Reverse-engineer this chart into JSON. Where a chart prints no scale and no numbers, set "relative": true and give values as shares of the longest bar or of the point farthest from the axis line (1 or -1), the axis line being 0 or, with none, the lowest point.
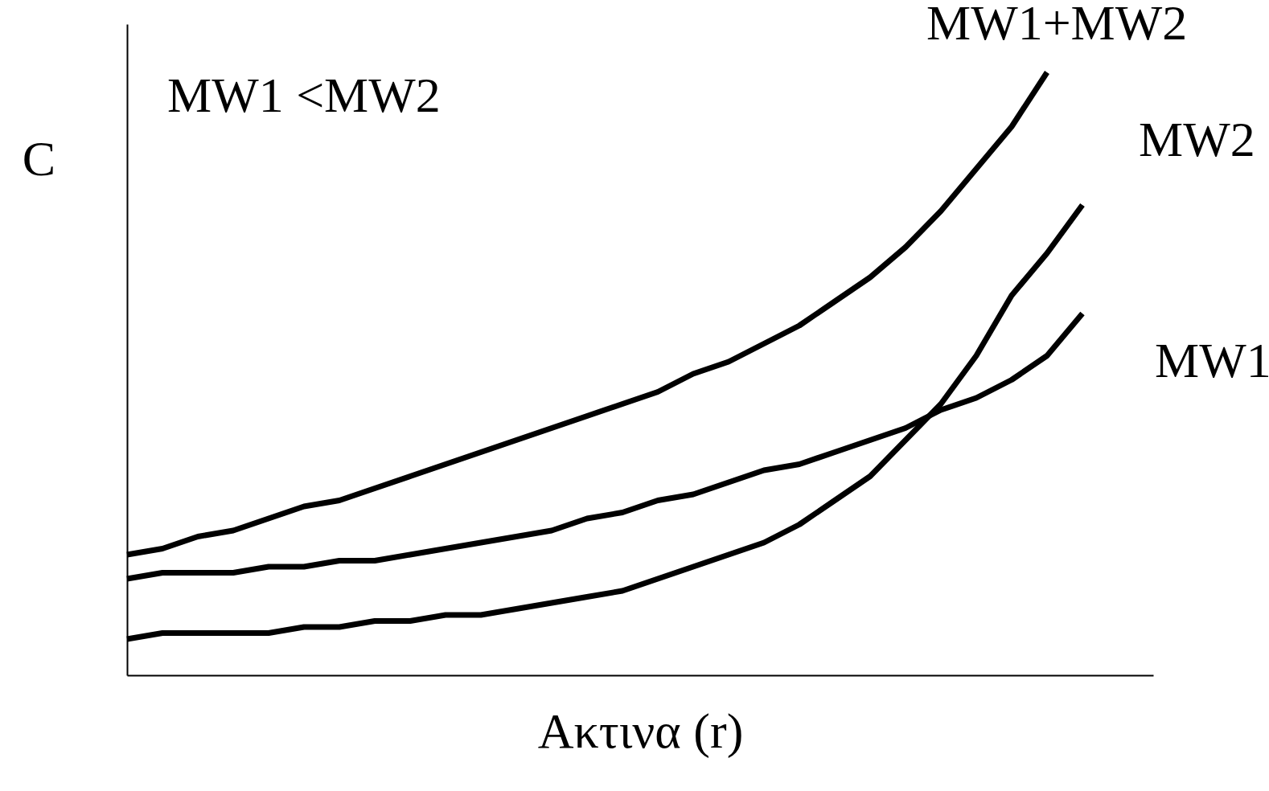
{
  "chart_data": {
    "type": "line",
    "relative": true,
    "xlabel": "Ακτινα (r)",
    "ylabel": "C",
    "annotations": [
      "MW1 <MW2"
    ],
    "legend": false,
    "line_style": "solid",
    "marker": "none",
    "categories": [
      null,
      null,
      null,
      null,
      null,
      null,
      null,
      null,
      null,
      null,
      null,
      null,
      null,
      null,
      null,
      null,
      null,
      null,
      null,
      null,
      null,
      null,
      null,
      null,
      null,
      null,
      null,
      null,
      null,
      null
    ],
    "series": [
      {
        "name": "MW1+MW2",
        "color": "#000000",
        "values": [
          0.2,
          0.21,
          0.23,
          0.24,
          0.26,
          0.28,
          0.29,
          0.31,
          0.33,
          0.35,
          0.37,
          0.39,
          0.41,
          0.43,
          0.45,
          0.47,
          0.5,
          0.52,
          0.55,
          0.58,
          0.62,
          0.66,
          0.71,
          0.77,
          0.84,
          0.91,
          1.0,
          null,
          null,
          null
        ]
      },
      {
        "name": "MW2",
        "color": "#000000",
        "values": [
          0.06,
          0.07,
          0.07,
          0.07,
          0.07,
          0.08,
          0.08,
          0.09,
          0.09,
          0.1,
          0.1,
          0.11,
          0.12,
          0.13,
          0.14,
          0.16,
          0.18,
          0.2,
          0.22,
          0.25,
          0.29,
          0.33,
          0.39,
          0.45,
          0.53,
          0.63,
          0.7,
          0.78,
          null,
          null
        ]
      },
      {
        "name": "MW1",
        "color": "#000000",
        "values": [
          0.16,
          0.17,
          0.17,
          0.17,
          0.18,
          0.18,
          0.19,
          0.19,
          0.2,
          0.21,
          0.22,
          0.23,
          0.24,
          0.26,
          0.27,
          0.29,
          0.3,
          0.32,
          0.34,
          0.35,
          0.37,
          0.39,
          0.41,
          0.44,
          0.46,
          0.49,
          0.53,
          0.6,
          null,
          null
        ]
      }
    ]
  }
}
